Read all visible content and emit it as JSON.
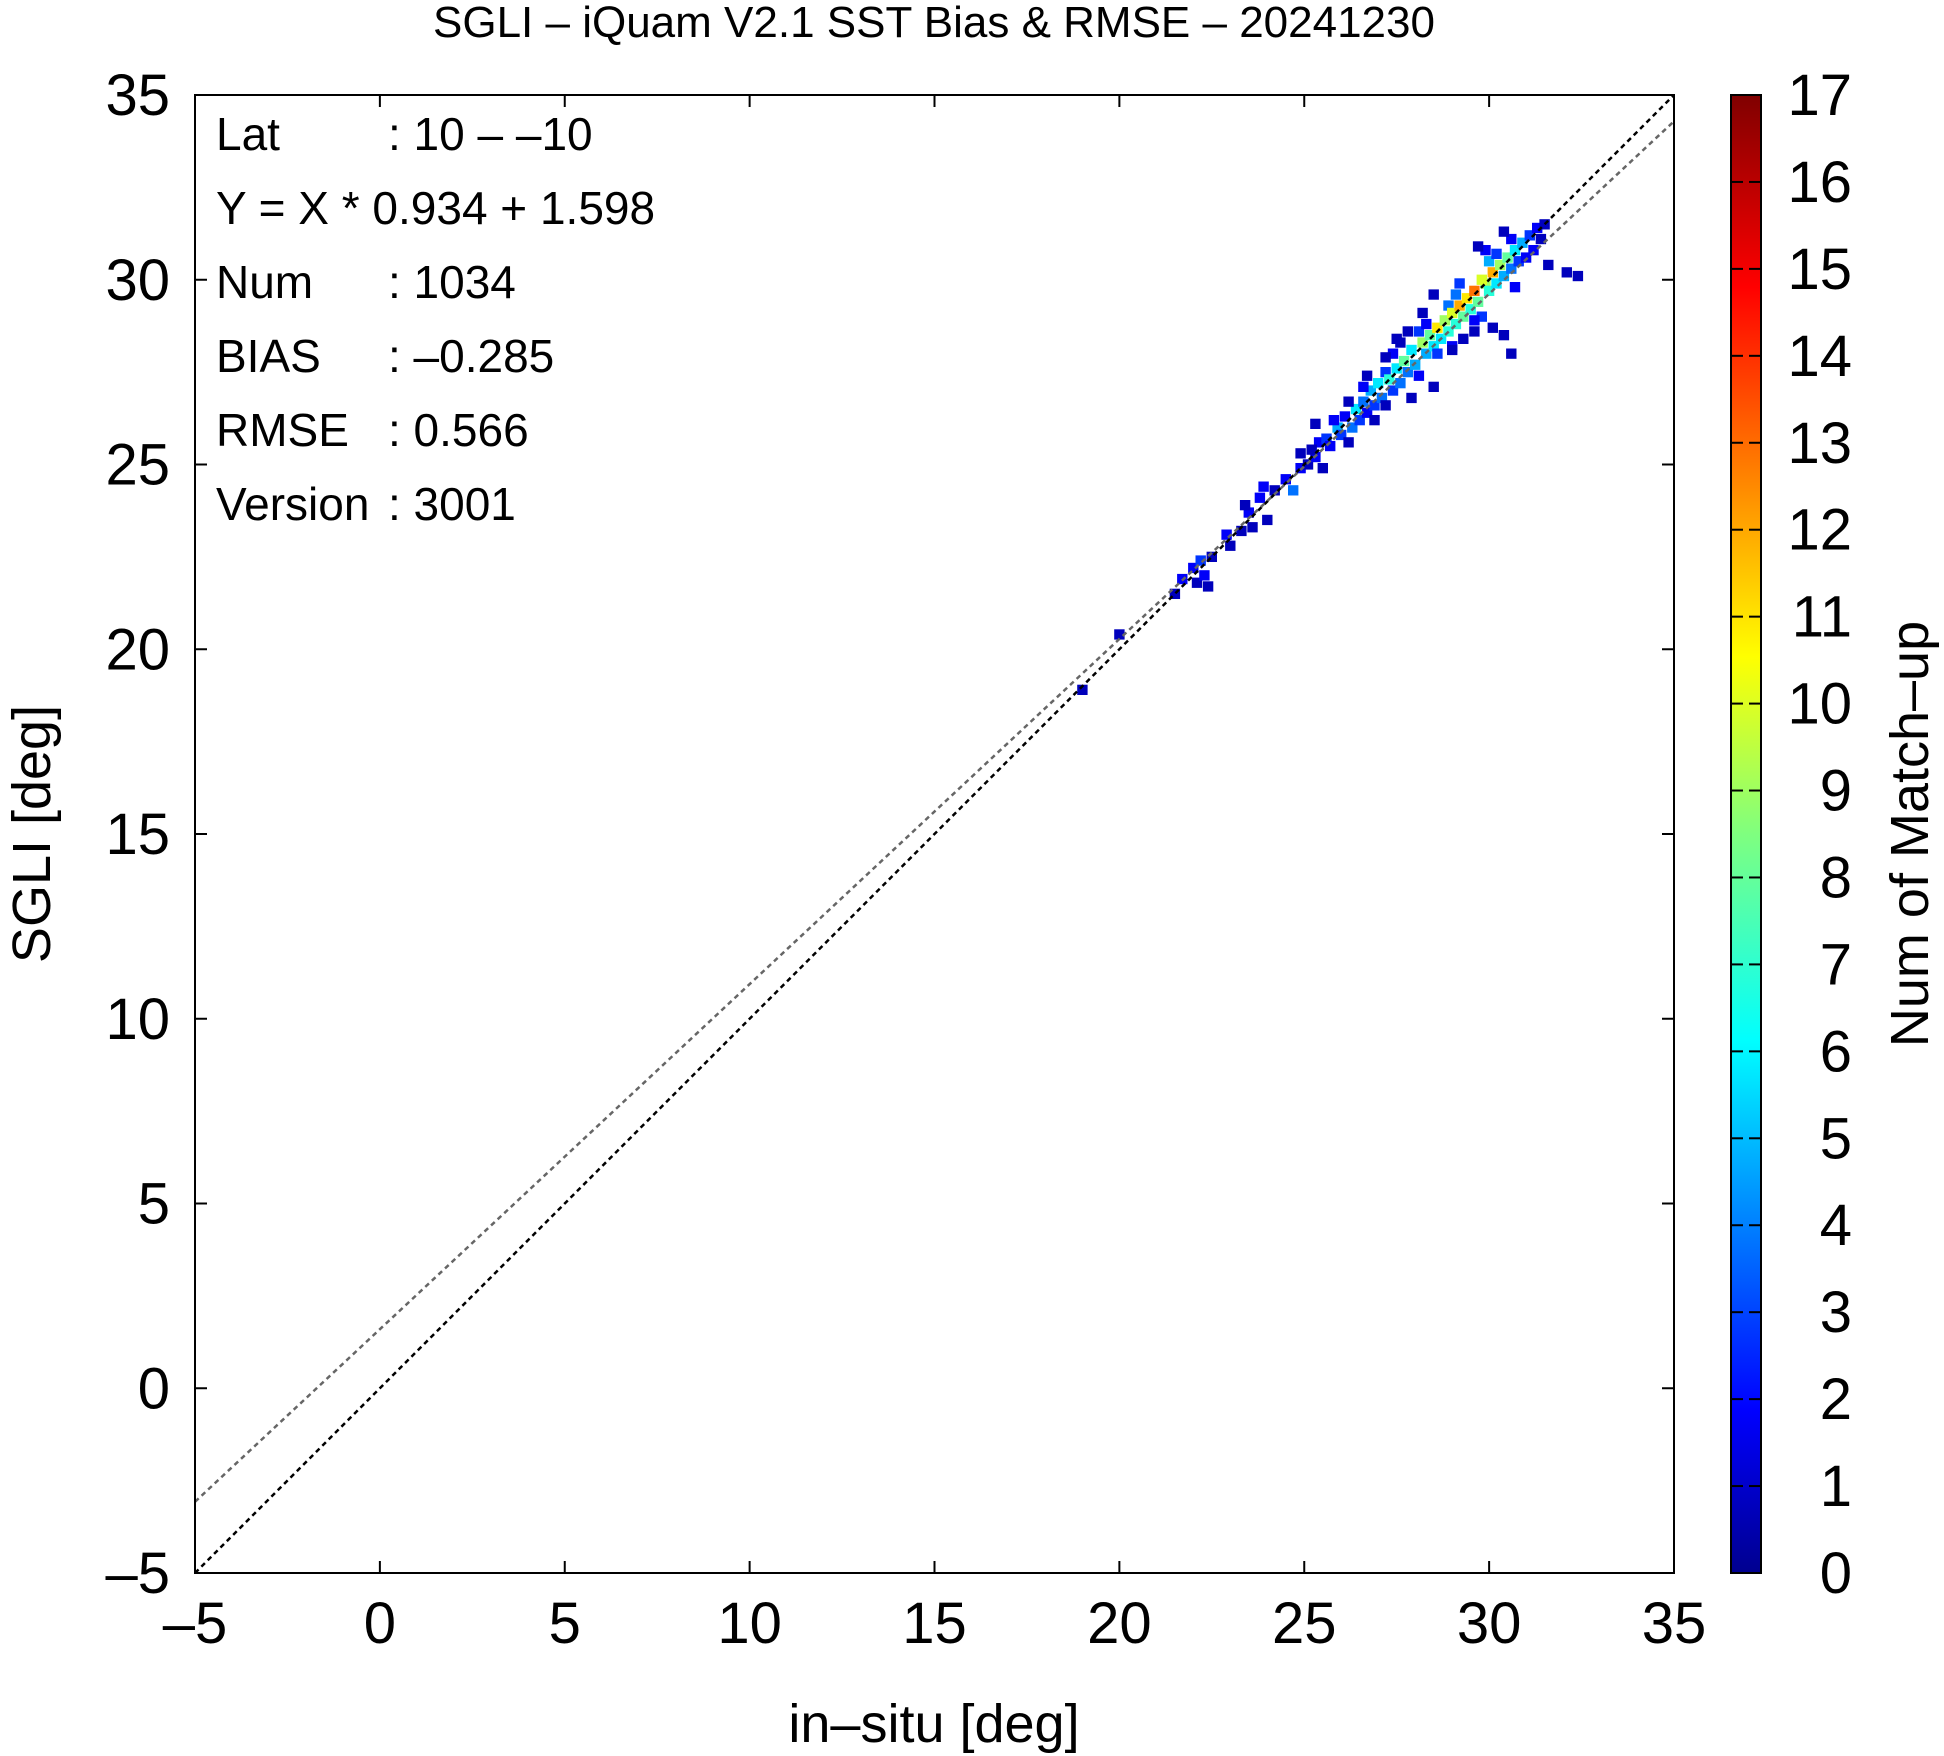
{
  "chart_data": {
    "type": "heatmap",
    "title": "SGLI – iQuam V2.1 SST Bias & RMSE  – 20241230",
    "xlabel": "in–situ [deg]",
    "ylabel": "SGLI [deg]",
    "xlim": [
      -5,
      35
    ],
    "ylim": [
      -5,
      35
    ],
    "x_ticks": [
      "–5",
      "0",
      "5",
      "10",
      "15",
      "20",
      "25",
      "30",
      "35"
    ],
    "y_ticks": [
      "–5",
      "0",
      "5",
      "10",
      "15",
      "20",
      "25",
      "30",
      "35"
    ],
    "colorbar": {
      "label": "Num of Match–up",
      "min": 0,
      "max": 17,
      "ticks": [
        "0",
        "1",
        "2",
        "3",
        "4",
        "5",
        "6",
        "7",
        "8",
        "9",
        "10",
        "11",
        "12",
        "13",
        "14",
        "15",
        "16",
        "17"
      ]
    },
    "stats": [
      {
        "key": "Lat",
        "value": ": 10 – –10"
      },
      {
        "key": "Y = X * 0.934 + 1.598",
        "value": ""
      },
      {
        "key": "Num",
        "value": ": 1034"
      },
      {
        "key": "BIAS",
        "value": ": –0.285"
      },
      {
        "key": "RMSE",
        "value": ": 0.566"
      },
      {
        "key": "Version",
        "value": ": 3001"
      }
    ],
    "lines": [
      {
        "name": "one-to-one",
        "slope": 1.0,
        "intercept": 0.0,
        "color": "#000000"
      },
      {
        "name": "regression",
        "slope": 0.934,
        "intercept": 1.598,
        "color": "#666666"
      }
    ],
    "bins": [
      [
        19.0,
        18.9,
        1
      ],
      [
        20.0,
        20.4,
        1
      ],
      [
        21.5,
        21.5,
        1
      ],
      [
        21.7,
        21.9,
        2
      ],
      [
        22.0,
        22.2,
        2
      ],
      [
        22.1,
        21.8,
        1
      ],
      [
        22.3,
        22.0,
        2
      ],
      [
        22.4,
        21.7,
        1
      ],
      [
        22.5,
        22.5,
        1
      ],
      [
        22.2,
        22.4,
        3
      ],
      [
        23.0,
        22.8,
        1
      ],
      [
        22.9,
        23.1,
        2
      ],
      [
        23.3,
        23.2,
        1
      ],
      [
        23.5,
        23.7,
        2
      ],
      [
        23.6,
        23.3,
        1
      ],
      [
        23.4,
        23.9,
        1
      ],
      [
        23.8,
        24.1,
        2
      ],
      [
        24.0,
        23.5,
        1
      ],
      [
        24.2,
        24.3,
        1
      ],
      [
        23.9,
        24.4,
        2
      ],
      [
        24.5,
        24.6,
        2
      ],
      [
        24.7,
        24.3,
        4
      ],
      [
        24.9,
        24.9,
        2
      ],
      [
        25.1,
        25.0,
        1
      ],
      [
        25.3,
        25.2,
        2
      ],
      [
        25.5,
        24.9,
        1
      ],
      [
        25.4,
        25.6,
        2
      ],
      [
        25.2,
        25.4,
        1
      ],
      [
        25.6,
        25.7,
        3
      ],
      [
        25.7,
        25.5,
        2
      ],
      [
        25.9,
        26.0,
        5
      ],
      [
        26.0,
        25.8,
        3
      ],
      [
        26.1,
        26.3,
        2
      ],
      [
        26.2,
        25.6,
        1
      ],
      [
        25.8,
        26.2,
        2
      ],
      [
        26.3,
        26.0,
        4
      ],
      [
        26.4,
        26.5,
        6
      ],
      [
        26.5,
        26.2,
        3
      ],
      [
        26.6,
        26.7,
        4
      ],
      [
        26.7,
        26.4,
        2
      ],
      [
        26.8,
        27.0,
        5
      ],
      [
        26.9,
        26.6,
        3
      ],
      [
        27.0,
        27.2,
        6
      ],
      [
        27.1,
        26.8,
        4
      ],
      [
        26.6,
        27.1,
        2
      ],
      [
        27.2,
        27.5,
        3
      ],
      [
        27.3,
        27.3,
        7
      ],
      [
        27.4,
        27.0,
        3
      ],
      [
        27.5,
        27.6,
        6
      ],
      [
        27.6,
        27.2,
        4
      ],
      [
        27.7,
        27.8,
        8
      ],
      [
        27.8,
        27.5,
        4
      ],
      [
        27.9,
        28.1,
        6
      ],
      [
        28.0,
        27.7,
        5
      ],
      [
        27.4,
        28.0,
        2
      ],
      [
        28.1,
        27.4,
        2
      ],
      [
        27.6,
        28.3,
        1
      ],
      [
        28.2,
        28.3,
        9
      ],
      [
        28.3,
        28.0,
        5
      ],
      [
        28.4,
        28.5,
        8
      ],
      [
        28.5,
        28.2,
        6
      ],
      [
        28.6,
        28.7,
        11
      ],
      [
        28.7,
        28.4,
        6
      ],
      [
        28.8,
        28.9,
        9
      ],
      [
        28.9,
        28.6,
        7
      ],
      [
        28.1,
        28.6,
        3
      ],
      [
        28.6,
        28.0,
        3
      ],
      [
        28.9,
        29.3,
        4
      ],
      [
        29.0,
        28.2,
        2
      ],
      [
        28.3,
        28.8,
        2
      ],
      [
        29.0,
        29.1,
        10
      ],
      [
        29.1,
        28.8,
        7
      ],
      [
        29.2,
        29.3,
        12
      ],
      [
        29.3,
        29.0,
        8
      ],
      [
        29.4,
        29.5,
        11
      ],
      [
        29.5,
        29.2,
        7
      ],
      [
        29.6,
        29.7,
        13
      ],
      [
        29.7,
        29.4,
        8
      ],
      [
        29.1,
        29.6,
        4
      ],
      [
        29.8,
        29.0,
        3
      ],
      [
        29.2,
        29.9,
        3
      ],
      [
        29.6,
        28.9,
        2
      ],
      [
        29.9,
        29.9,
        9
      ],
      [
        29.8,
        30.0,
        10
      ],
      [
        30.0,
        29.7,
        7
      ],
      [
        30.1,
        30.2,
        12
      ],
      [
        30.2,
        29.9,
        6
      ],
      [
        30.3,
        30.4,
        9
      ],
      [
        30.4,
        30.1,
        5
      ],
      [
        30.5,
        30.6,
        8
      ],
      [
        30.6,
        30.3,
        4
      ],
      [
        30.0,
        30.5,
        5
      ],
      [
        30.7,
        29.8,
        2
      ],
      [
        29.9,
        30.8,
        2
      ],
      [
        30.2,
        30.7,
        3
      ],
      [
        30.7,
        30.8,
        6
      ],
      [
        30.8,
        30.5,
        3
      ],
      [
        30.9,
        31.0,
        5
      ],
      [
        31.0,
        30.6,
        2
      ],
      [
        31.1,
        31.2,
        3
      ],
      [
        31.2,
        30.8,
        2
      ],
      [
        30.6,
        31.1,
        2
      ],
      [
        31.3,
        31.4,
        2
      ],
      [
        31.4,
        31.1,
        1
      ],
      [
        31.5,
        31.5,
        1
      ],
      [
        31.6,
        30.4,
        1
      ],
      [
        32.1,
        30.2,
        1
      ],
      [
        32.4,
        30.1,
        1
      ],
      [
        30.4,
        31.3,
        1
      ],
      [
        29.0,
        28.1,
        1
      ],
      [
        29.3,
        28.4,
        1
      ],
      [
        29.6,
        28.6,
        1
      ],
      [
        30.1,
        28.7,
        1
      ],
      [
        30.4,
        28.5,
        1
      ],
      [
        30.6,
        28.0,
        1
      ],
      [
        29.7,
        30.9,
        1
      ],
      [
        28.5,
        29.6,
        1
      ],
      [
        28.2,
        29.1,
        1
      ],
      [
        27.8,
        28.6,
        1
      ],
      [
        27.5,
        28.4,
        1
      ],
      [
        27.2,
        27.9,
        1
      ],
      [
        26.7,
        27.4,
        1
      ],
      [
        26.2,
        26.7,
        1
      ],
      [
        25.3,
        26.1,
        1
      ],
      [
        24.9,
        25.3,
        1
      ],
      [
        26.9,
        26.2,
        1
      ],
      [
        27.9,
        26.8,
        1
      ],
      [
        28.5,
        27.1,
        1
      ],
      [
        27.2,
        26.6,
        1
      ]
    ]
  }
}
